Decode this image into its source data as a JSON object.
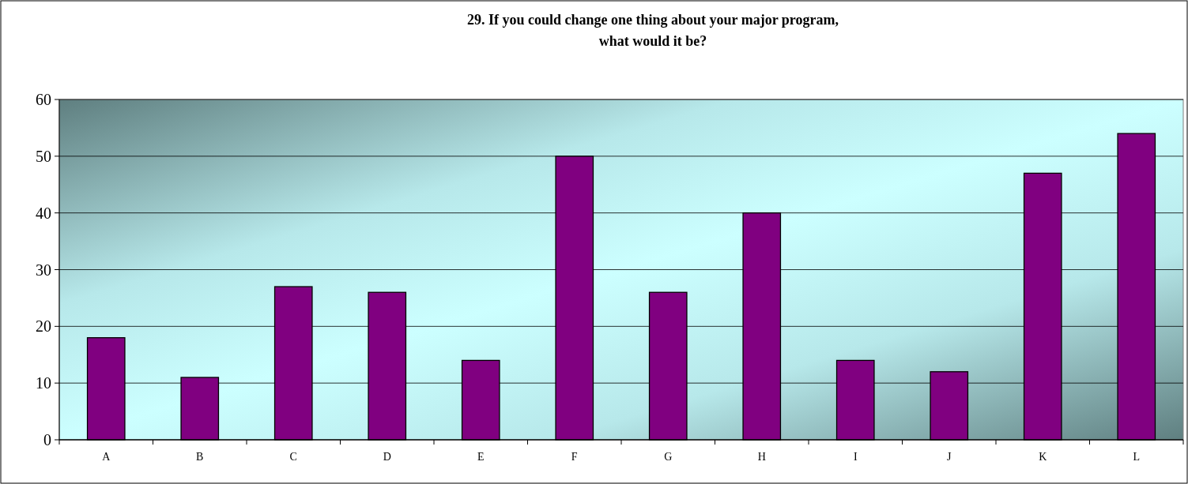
{
  "chart_data": {
    "type": "bar",
    "title": "29.  If you could change one thing about your major program,\nwhat would it be?",
    "categories": [
      "A",
      "B",
      "C",
      "D",
      "E",
      "F",
      "G",
      "H",
      "I",
      "J",
      "K",
      "L"
    ],
    "values": [
      18,
      11,
      27,
      26,
      14,
      50,
      26,
      40,
      14,
      12,
      47,
      54
    ],
    "color": "#800080",
    "ylim": [
      0,
      60
    ],
    "yticks": [
      0,
      10,
      20,
      30,
      40,
      50,
      60
    ],
    "grid": "y"
  }
}
